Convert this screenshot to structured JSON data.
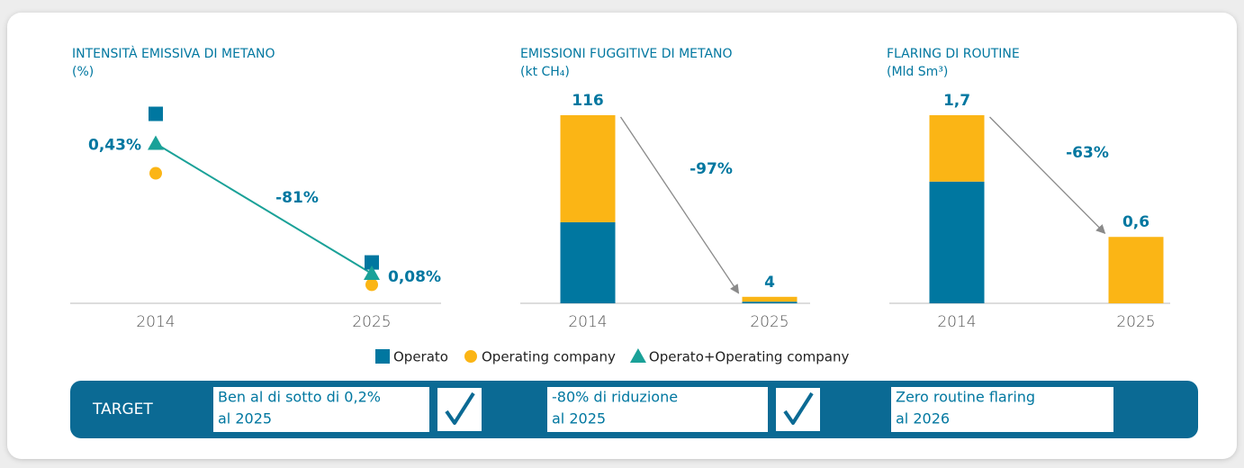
{
  "chart_data": [
    {
      "type": "line",
      "title": "INTENSITÀ EMISSIVA DI METANO",
      "subtitle": "(%)",
      "categories": [
        "2014",
        "2025"
      ],
      "ylim": [
        0,
        0.55
      ],
      "annotation": "-81%",
      "series": [
        {
          "name": "Operato",
          "color": "#0077a0",
          "marker": "square",
          "values": [
            0.51,
            0.11
          ]
        },
        {
          "name": "Operating company",
          "color": "#fbb515",
          "marker": "circle",
          "values": [
            0.35,
            0.05
          ]
        },
        {
          "name": "Operato+Operating company",
          "color": "#1aa198",
          "marker": "triangle",
          "line": true,
          "values": [
            0.43,
            0.08
          ],
          "value_labels": [
            "0,43%",
            "0,08%"
          ]
        }
      ]
    },
    {
      "type": "bar",
      "stacked": true,
      "title": "EMISSIONI FUGGITIVE DI METANO",
      "subtitle": "(kt CH₄)",
      "categories": [
        "2014",
        "2025"
      ],
      "ylim": [
        0,
        116
      ],
      "annotation": "-97%",
      "series": [
        {
          "color": "#0077a0",
          "values": [
            50,
            1
          ]
        },
        {
          "color": "#fbb515",
          "values": [
            66,
            3
          ]
        }
      ],
      "totals": [
        116,
        4
      ]
    },
    {
      "type": "bar",
      "stacked": true,
      "title": "FLARING DI ROUTINE",
      "subtitle": "(Mld Sm³)",
      "categories": [
        "2014",
        "2025"
      ],
      "ylim": [
        0,
        1.7
      ],
      "annotation": "-63%",
      "series": [
        {
          "color": "#0077a0",
          "values": [
            1.1,
            0
          ]
        },
        {
          "color": "#fbb515",
          "values": [
            0.6,
            0.6
          ]
        }
      ],
      "totals": [
        1.7,
        0.6
      ],
      "total_labels": [
        "1,7",
        "0,6"
      ]
    }
  ],
  "target": {
    "label": "TARGET",
    "items": [
      {
        "lines": [
          "Ben al di sotto di 0,2%",
          "al 2025"
        ],
        "achieved": true
      },
      {
        "lines": [
          "-80% di riduzione",
          "al 2025"
        ],
        "achieved": true
      },
      {
        "lines": [
          "Zero routine flaring",
          "al 2026"
        ],
        "achieved": false
      }
    ]
  }
}
